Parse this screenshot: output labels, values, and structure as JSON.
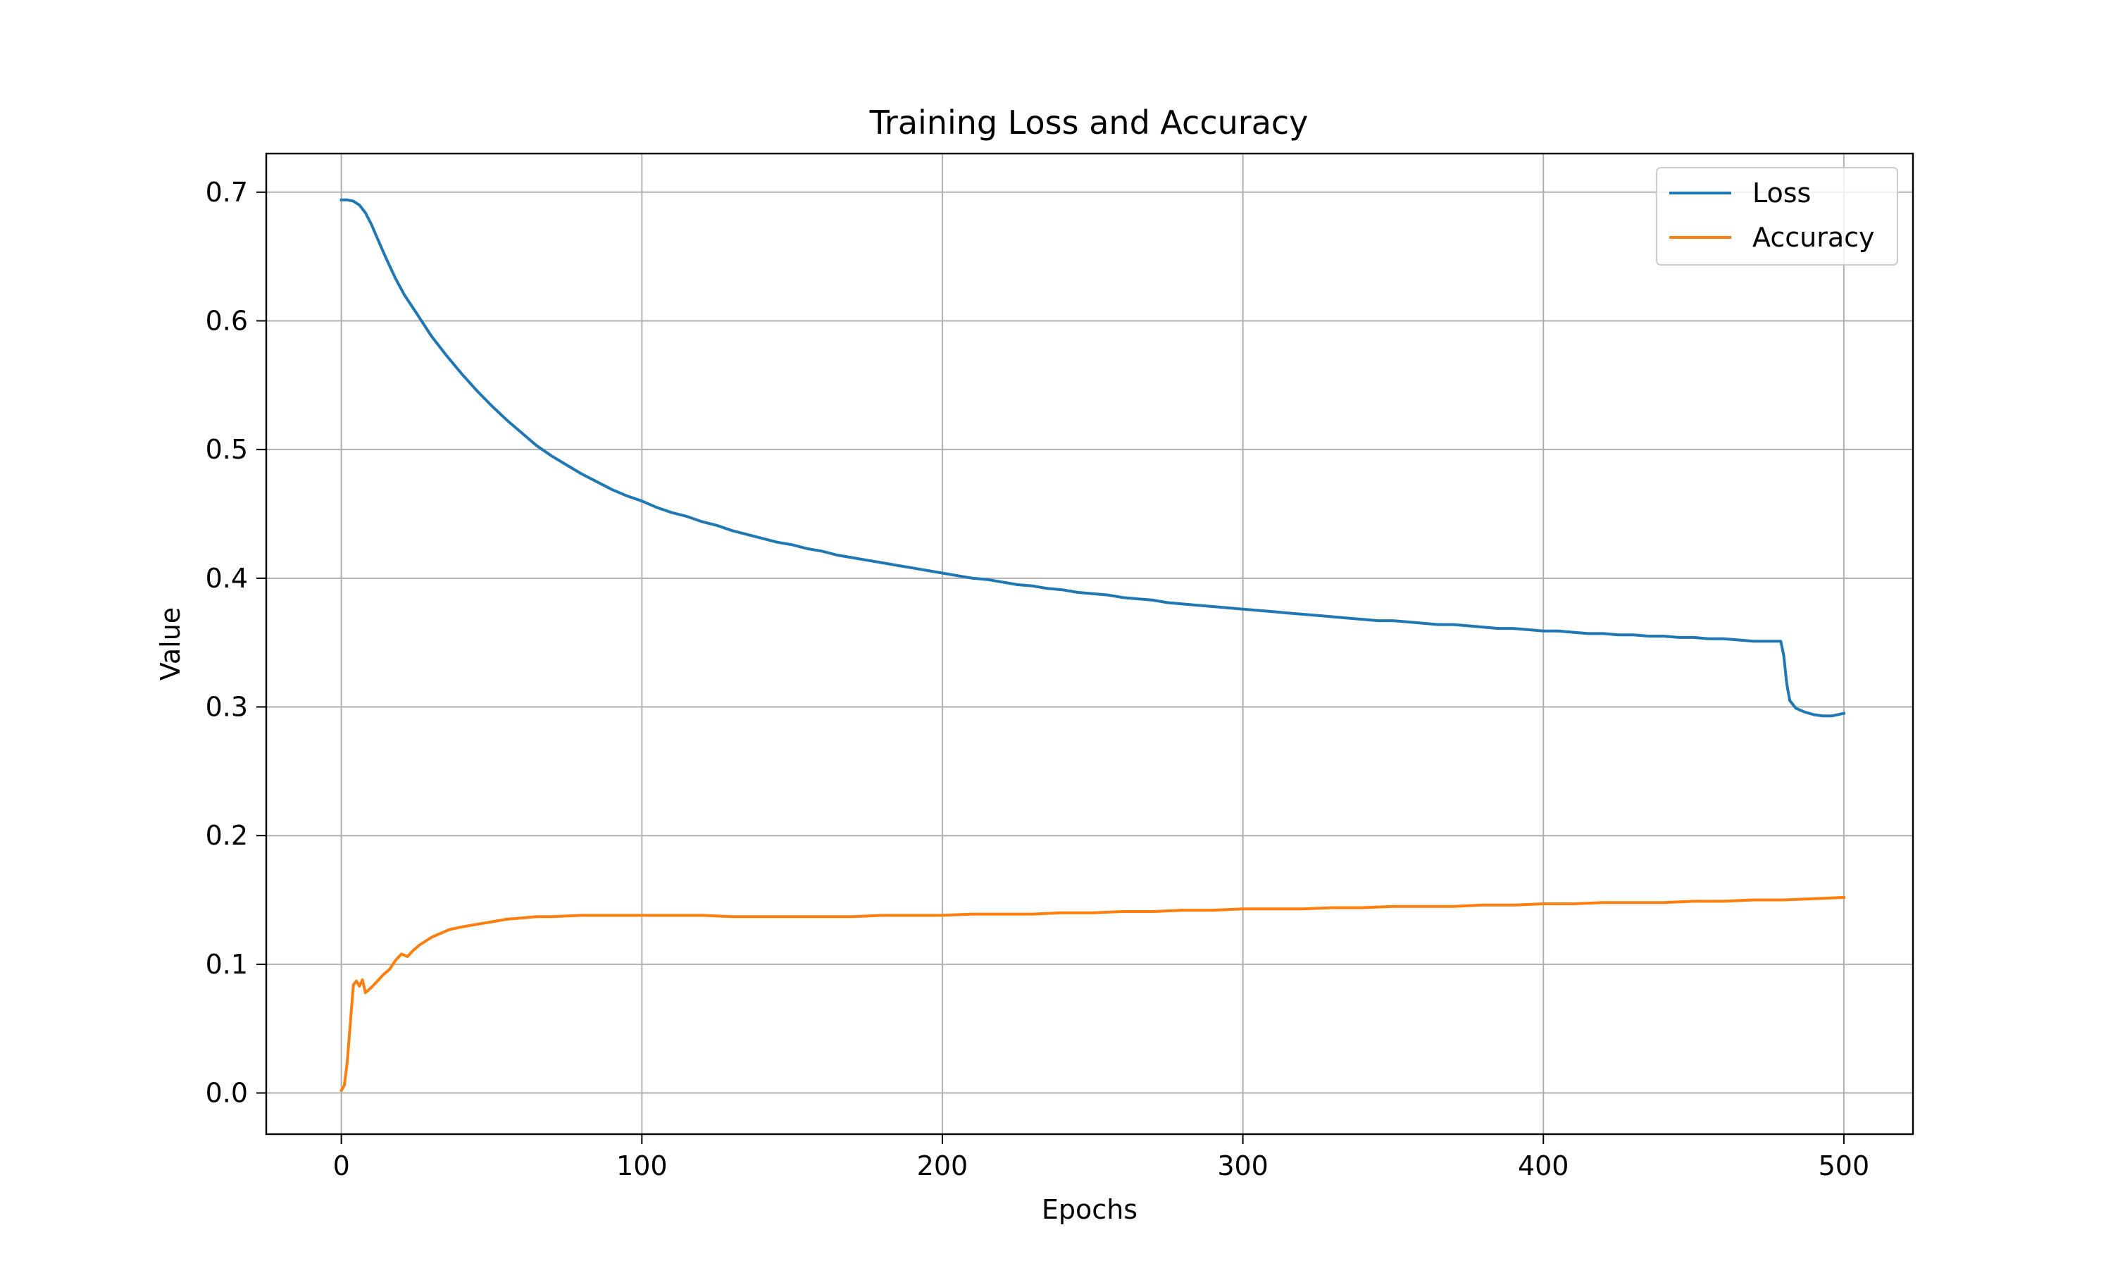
{
  "chart_data": {
    "type": "line",
    "title": "Training Loss and Accuracy",
    "xlabel": "Epochs",
    "ylabel": "Value",
    "xlim": [
      -25,
      523
    ],
    "ylim": [
      -0.032,
      0.73
    ],
    "xticks": [
      0,
      100,
      200,
      300,
      400,
      500
    ],
    "xtick_labels": [
      "0",
      "100",
      "200",
      "300",
      "400",
      "500"
    ],
    "yticks": [
      0.0,
      0.1,
      0.2,
      0.3,
      0.4,
      0.5,
      0.6,
      0.7
    ],
    "ytick_labels": [
      "0.0",
      "0.1",
      "0.2",
      "0.3",
      "0.4",
      "0.5",
      "0.6",
      "0.7"
    ],
    "grid": true,
    "legend_position": "top-right",
    "series": [
      {
        "name": "Loss",
        "color": "#1f77b4",
        "points": [
          [
            0,
            0.694
          ],
          [
            2,
            0.694
          ],
          [
            4,
            0.693
          ],
          [
            6,
            0.69
          ],
          [
            8,
            0.684
          ],
          [
            10,
            0.675
          ],
          [
            12,
            0.664
          ],
          [
            15,
            0.648
          ],
          [
            18,
            0.633
          ],
          [
            21,
            0.62
          ],
          [
            25,
            0.606
          ],
          [
            30,
            0.588
          ],
          [
            35,
            0.573
          ],
          [
            40,
            0.559
          ],
          [
            45,
            0.546
          ],
          [
            50,
            0.534
          ],
          [
            55,
            0.523
          ],
          [
            60,
            0.513
          ],
          [
            65,
            0.503
          ],
          [
            70,
            0.495
          ],
          [
            75,
            0.488
          ],
          [
            80,
            0.481
          ],
          [
            85,
            0.475
          ],
          [
            90,
            0.469
          ],
          [
            95,
            0.464
          ],
          [
            100,
            0.46
          ],
          [
            105,
            0.455
          ],
          [
            110,
            0.451
          ],
          [
            115,
            0.448
          ],
          [
            120,
            0.444
          ],
          [
            125,
            0.441
          ],
          [
            130,
            0.437
          ],
          [
            135,
            0.434
          ],
          [
            140,
            0.431
          ],
          [
            145,
            0.428
          ],
          [
            150,
            0.426
          ],
          [
            155,
            0.423
          ],
          [
            160,
            0.421
          ],
          [
            165,
            0.418
          ],
          [
            170,
            0.416
          ],
          [
            175,
            0.414
          ],
          [
            180,
            0.412
          ],
          [
            185,
            0.41
          ],
          [
            190,
            0.408
          ],
          [
            195,
            0.406
          ],
          [
            200,
            0.404
          ],
          [
            205,
            0.402
          ],
          [
            210,
            0.4
          ],
          [
            215,
            0.399
          ],
          [
            220,
            0.397
          ],
          [
            225,
            0.395
          ],
          [
            230,
            0.394
          ],
          [
            235,
            0.392
          ],
          [
            240,
            0.391
          ],
          [
            245,
            0.389
          ],
          [
            250,
            0.388
          ],
          [
            255,
            0.387
          ],
          [
            260,
            0.385
          ],
          [
            265,
            0.384
          ],
          [
            270,
            0.383
          ],
          [
            275,
            0.381
          ],
          [
            280,
            0.38
          ],
          [
            285,
            0.379
          ],
          [
            290,
            0.378
          ],
          [
            295,
            0.377
          ],
          [
            300,
            0.376
          ],
          [
            305,
            0.375
          ],
          [
            310,
            0.374
          ],
          [
            315,
            0.373
          ],
          [
            320,
            0.372
          ],
          [
            325,
            0.371
          ],
          [
            330,
            0.37
          ],
          [
            335,
            0.369
          ],
          [
            340,
            0.368
          ],
          [
            345,
            0.367
          ],
          [
            350,
            0.367
          ],
          [
            355,
            0.366
          ],
          [
            360,
            0.365
          ],
          [
            365,
            0.364
          ],
          [
            370,
            0.364
          ],
          [
            375,
            0.363
          ],
          [
            380,
            0.362
          ],
          [
            385,
            0.361
          ],
          [
            390,
            0.361
          ],
          [
            395,
            0.36
          ],
          [
            400,
            0.359
          ],
          [
            405,
            0.359
          ],
          [
            410,
            0.358
          ],
          [
            415,
            0.357
          ],
          [
            420,
            0.357
          ],
          [
            425,
            0.356
          ],
          [
            430,
            0.356
          ],
          [
            435,
            0.355
          ],
          [
            440,
            0.355
          ],
          [
            445,
            0.354
          ],
          [
            450,
            0.354
          ],
          [
            455,
            0.353
          ],
          [
            460,
            0.353
          ],
          [
            465,
            0.352
          ],
          [
            470,
            0.351
          ],
          [
            475,
            0.351
          ],
          [
            479,
            0.351
          ],
          [
            480,
            0.34
          ],
          [
            481,
            0.318
          ],
          [
            482,
            0.305
          ],
          [
            484,
            0.299
          ],
          [
            487,
            0.296
          ],
          [
            490,
            0.294
          ],
          [
            493,
            0.293
          ],
          [
            496,
            0.293
          ],
          [
            500,
            0.295
          ]
        ]
      },
      {
        "name": "Accuracy",
        "color": "#ff7f0e",
        "points": [
          [
            0,
            0.002
          ],
          [
            1,
            0.006
          ],
          [
            2,
            0.025
          ],
          [
            3,
            0.055
          ],
          [
            4,
            0.084
          ],
          [
            5,
            0.087
          ],
          [
            6,
            0.083
          ],
          [
            7,
            0.088
          ],
          [
            8,
            0.078
          ],
          [
            10,
            0.082
          ],
          [
            12,
            0.087
          ],
          [
            14,
            0.092
          ],
          [
            16,
            0.096
          ],
          [
            18,
            0.103
          ],
          [
            20,
            0.108
          ],
          [
            22,
            0.106
          ],
          [
            24,
            0.111
          ],
          [
            26,
            0.115
          ],
          [
            28,
            0.118
          ],
          [
            30,
            0.121
          ],
          [
            33,
            0.124
          ],
          [
            36,
            0.127
          ],
          [
            40,
            0.129
          ],
          [
            45,
            0.131
          ],
          [
            50,
            0.133
          ],
          [
            55,
            0.135
          ],
          [
            60,
            0.136
          ],
          [
            65,
            0.137
          ],
          [
            70,
            0.137
          ],
          [
            80,
            0.138
          ],
          [
            90,
            0.138
          ],
          [
            100,
            0.138
          ],
          [
            110,
            0.138
          ],
          [
            120,
            0.138
          ],
          [
            130,
            0.137
          ],
          [
            140,
            0.137
          ],
          [
            150,
            0.137
          ],
          [
            160,
            0.137
          ],
          [
            170,
            0.137
          ],
          [
            180,
            0.138
          ],
          [
            190,
            0.138
          ],
          [
            200,
            0.138
          ],
          [
            210,
            0.139
          ],
          [
            220,
            0.139
          ],
          [
            230,
            0.139
          ],
          [
            240,
            0.14
          ],
          [
            250,
            0.14
          ],
          [
            260,
            0.141
          ],
          [
            270,
            0.141
          ],
          [
            280,
            0.142
          ],
          [
            290,
            0.142
          ],
          [
            300,
            0.143
          ],
          [
            310,
            0.143
          ],
          [
            320,
            0.143
          ],
          [
            330,
            0.144
          ],
          [
            340,
            0.144
          ],
          [
            350,
            0.145
          ],
          [
            360,
            0.145
          ],
          [
            370,
            0.145
          ],
          [
            380,
            0.146
          ],
          [
            390,
            0.146
          ],
          [
            400,
            0.147
          ],
          [
            410,
            0.147
          ],
          [
            420,
            0.148
          ],
          [
            430,
            0.148
          ],
          [
            440,
            0.148
          ],
          [
            450,
            0.149
          ],
          [
            460,
            0.149
          ],
          [
            470,
            0.15
          ],
          [
            480,
            0.15
          ],
          [
            490,
            0.151
          ],
          [
            500,
            0.152
          ]
        ]
      }
    ]
  }
}
